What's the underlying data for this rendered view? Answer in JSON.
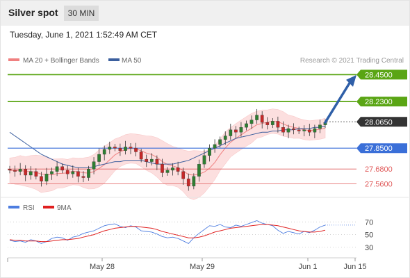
{
  "header": {
    "title": "Silver spot",
    "timeframe": "30 MIN"
  },
  "datetime": "Tuesday, June 1, 2021 1:52:49 AM CET",
  "legend": {
    "bollinger": "MA 20 + Bollinger Bands",
    "ma50": "MA 50",
    "copyright": "Research © 2021 Trading Central",
    "rsi": "RSI",
    "rsi_ma": "9MA"
  },
  "colors": {
    "resistance": "#5aa514",
    "support": "#3a6fd8",
    "minor_support": "#e05a5a",
    "current": "#333333",
    "ma20": "#f08080",
    "ma50": "#3b5f9e",
    "band": "#fcd5d5",
    "candle_up": "#2e7d32",
    "candle_down": "#c62828",
    "rsi": "#4d7de0",
    "rsi_ma": "#e02020",
    "arrow": "#2f5fa8"
  },
  "chart_data": [
    {
      "type": "candlestick",
      "ylim": [
        27.46,
        28.52
      ],
      "x_ticks": [
        "May 28",
        "May 29",
        "Jun 1",
        "Jun 15"
      ],
      "levels": [
        {
          "label": "28.4500",
          "value": 28.45,
          "kind": "resistance"
        },
        {
          "label": "28.2300",
          "value": 28.23,
          "kind": "resistance"
        },
        {
          "label": "28.0650",
          "value": 28.065,
          "kind": "current"
        },
        {
          "label": "27.8500",
          "value": 27.85,
          "kind": "support"
        },
        {
          "label": "27.6800",
          "value": 27.68,
          "kind": "minor_support"
        },
        {
          "label": "27.5600",
          "value": 27.56,
          "kind": "minor_support"
        }
      ],
      "forecast_arrow": {
        "from": 28.06,
        "to": 28.43
      },
      "close_path": [
        27.67,
        27.66,
        27.68,
        27.63,
        27.66,
        27.62,
        27.58,
        27.64,
        27.66,
        27.7,
        27.67,
        27.64,
        27.66,
        27.62,
        27.61,
        27.68,
        27.74,
        27.8,
        27.84,
        27.86,
        27.85,
        27.83,
        27.86,
        27.85,
        27.82,
        27.76,
        27.74,
        27.76,
        27.72,
        27.65,
        27.67,
        27.69,
        27.66,
        27.6,
        27.54,
        27.62,
        27.72,
        27.79,
        27.85,
        27.88,
        27.92,
        27.95,
        28.0,
        27.98,
        28.02,
        28.05,
        28.08,
        28.12,
        28.06,
        28.04,
        28.07,
        28.02,
        27.98,
        28.01,
        28.0,
        27.99,
        28.0,
        27.98,
        28.01,
        28.04,
        28.06
      ],
      "ma50": [
        27.98,
        27.95,
        27.92,
        27.89,
        27.86,
        27.83,
        27.8,
        27.78,
        27.76,
        27.74,
        27.72,
        27.71,
        27.7,
        27.69,
        27.69,
        27.69,
        27.7,
        27.71,
        27.72,
        27.73,
        27.74,
        27.74,
        27.75,
        27.75,
        27.75,
        27.75,
        27.74,
        27.73,
        27.72,
        27.72,
        27.72,
        27.72,
        27.73,
        27.74,
        27.75,
        27.77,
        27.79,
        27.81,
        27.83,
        27.85,
        27.87,
        27.89,
        27.91,
        27.93,
        27.94,
        27.95,
        27.96,
        27.97,
        27.98,
        27.98,
        27.99,
        27.99,
        28.0,
        28.0,
        28.0,
        28.01,
        28.01,
        28.01,
        28.02,
        28.02,
        28.03
      ]
    },
    {
      "type": "line",
      "series": [
        {
          "name": "RSI",
          "values": [
            41,
            39,
            40,
            38,
            42,
            40,
            36,
            39,
            44,
            46,
            45,
            41,
            46,
            48,
            52,
            54,
            56,
            60,
            64,
            66,
            67,
            63,
            61,
            64,
            62,
            56,
            55,
            54,
            51,
            47,
            45,
            46,
            44,
            40,
            36,
            45,
            52,
            58,
            64,
            63,
            66,
            62,
            61,
            65,
            63,
            66,
            69,
            72,
            68,
            66,
            64,
            57,
            52,
            55,
            53,
            51,
            55,
            53,
            57,
            62,
            65
          ]
        },
        {
          "name": "9MA",
          "values": [
            42,
            41,
            41,
            40,
            40,
            40,
            39,
            39,
            40,
            41,
            42,
            42,
            43,
            44,
            46,
            48,
            50,
            53,
            56,
            58,
            60,
            61,
            62,
            63,
            63,
            62,
            61,
            60,
            58,
            55,
            53,
            51,
            49,
            47,
            45,
            45,
            46,
            48,
            51,
            54,
            56,
            58,
            60,
            61,
            62,
            63,
            64,
            65,
            66,
            66,
            65,
            64,
            62,
            60,
            58,
            56,
            55,
            54,
            54,
            55,
            57
          ]
        }
      ],
      "yticks": [
        "70",
        "50",
        "30"
      ],
      "ylim": [
        20,
        78
      ]
    }
  ]
}
